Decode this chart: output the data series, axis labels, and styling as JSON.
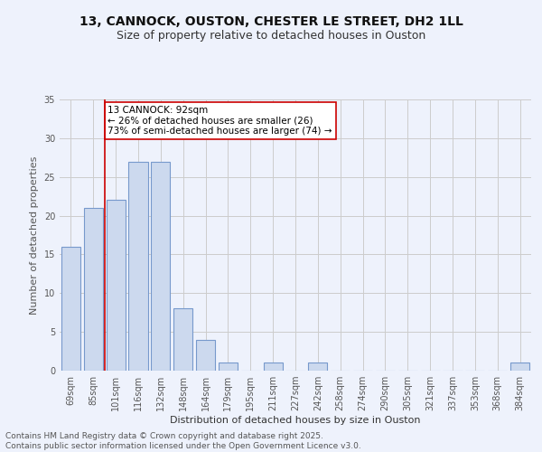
{
  "title_line1": "13, CANNOCK, OUSTON, CHESTER LE STREET, DH2 1LL",
  "title_line2": "Size of property relative to detached houses in Ouston",
  "xlabel": "Distribution of detached houses by size in Ouston",
  "ylabel": "Number of detached properties",
  "categories": [
    "69sqm",
    "85sqm",
    "101sqm",
    "116sqm",
    "132sqm",
    "148sqm",
    "164sqm",
    "179sqm",
    "195sqm",
    "211sqm",
    "227sqm",
    "242sqm",
    "258sqm",
    "274sqm",
    "290sqm",
    "305sqm",
    "321sqm",
    "337sqm",
    "353sqm",
    "368sqm",
    "384sqm"
  ],
  "values": [
    16,
    21,
    22,
    27,
    27,
    8,
    4,
    1,
    0,
    1,
    0,
    1,
    0,
    0,
    0,
    0,
    0,
    0,
    0,
    0,
    1
  ],
  "bar_color": "#ccd9ee",
  "bar_edge_color": "#7799cc",
  "redline_x": 1.5,
  "annotation_text": "13 CANNOCK: 92sqm\n← 26% of detached houses are smaller (26)\n73% of semi-detached houses are larger (74) →",
  "annotation_box_color": "#ffffff",
  "annotation_box_edge": "#cc0000",
  "annotation_text_color": "#000000",
  "redline_color": "#cc0000",
  "ylim": [
    0,
    35
  ],
  "yticks": [
    0,
    5,
    10,
    15,
    20,
    25,
    30,
    35
  ],
  "grid_color": "#cccccc",
  "background_color": "#eef2fc",
  "footer": "Contains HM Land Registry data © Crown copyright and database right 2025.\nContains public sector information licensed under the Open Government Licence v3.0.",
  "title_fontsize": 10,
  "subtitle_fontsize": 9,
  "axis_label_fontsize": 8,
  "tick_fontsize": 7,
  "footer_fontsize": 6.5,
  "annot_fontsize": 7.5
}
